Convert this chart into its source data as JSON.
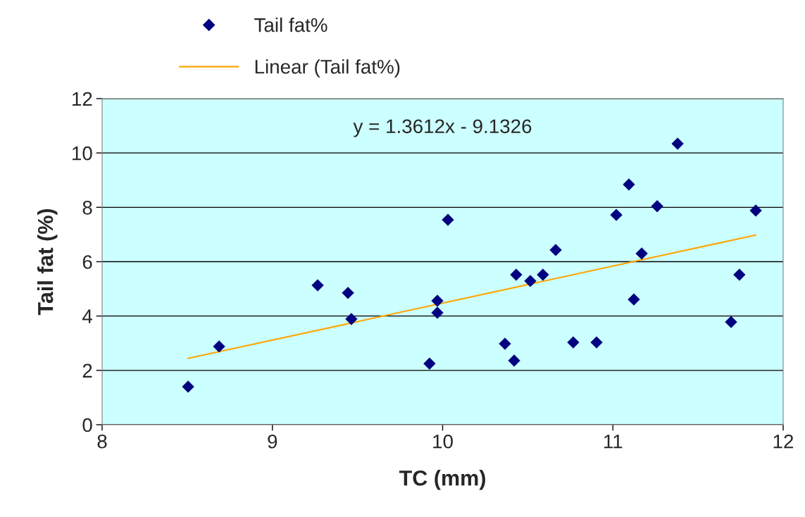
{
  "chart_data": {
    "type": "scatter",
    "xlabel": "TC (mm)",
    "ylabel": "Tail fat (%)",
    "xlim": [
      8,
      12
    ],
    "xticks": [
      8,
      9,
      10,
      11,
      12
    ],
    "ylim": [
      0,
      12
    ],
    "yticks": [
      0,
      2,
      4,
      6,
      8,
      10,
      12
    ],
    "grid": "y",
    "legend": "top",
    "annotations": [
      "y = 1.3612x - 9.1326"
    ],
    "series": [
      {
        "name": "Tail fat%",
        "marker": "diamond",
        "color": "#000080",
        "x": [
          8.505,
          8.687,
          9.266,
          9.444,
          9.464,
          9.923,
          9.969,
          9.969,
          10.031,
          10.366,
          10.42,
          10.432,
          10.515,
          10.589,
          10.664,
          10.767,
          10.904,
          11.02,
          11.094,
          11.123,
          11.169,
          11.26,
          11.38,
          11.694,
          11.743,
          11.839
        ],
        "values": [
          1.4,
          2.88,
          5.13,
          4.85,
          3.89,
          2.25,
          4.56,
          4.12,
          7.54,
          2.98,
          2.36,
          5.52,
          5.29,
          5.52,
          6.43,
          3.03,
          3.03,
          7.72,
          8.84,
          4.61,
          6.3,
          8.04,
          10.34,
          3.78,
          5.52,
          7.88
        ]
      },
      {
        "name": "Linear (Tail fat%)",
        "type": "line",
        "marker": "none",
        "color": "#ffa500",
        "x": [
          8.505,
          11.839
        ],
        "values": [
          2.44,
          6.98
        ]
      }
    ]
  }
}
